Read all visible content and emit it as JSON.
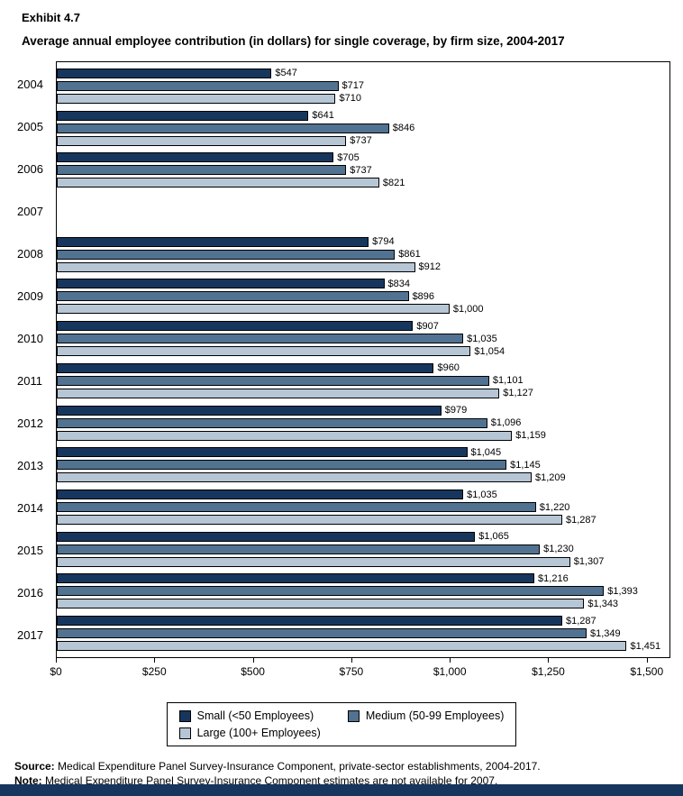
{
  "header": {
    "exhibit_label": "Exhibit 4.7",
    "title": "Average annual employee contribution (in dollars) for single coverage, by firm size, 2004-2017"
  },
  "chart_data": {
    "type": "bar",
    "orientation": "horizontal",
    "title": "Average annual employee contribution (in dollars) for single coverage, by firm size, 2004-2017",
    "xlabel": "",
    "ylabel": "",
    "xlim": [
      0,
      1560
    ],
    "grid": false,
    "legend_position": "bottom",
    "categories": [
      "2004",
      "2005",
      "2006",
      "2007",
      "2008",
      "2009",
      "2010",
      "2011",
      "2012",
      "2013",
      "2014",
      "2015",
      "2016",
      "2017"
    ],
    "series": [
      {
        "key": "small",
        "name": "Small (<50 Employees)",
        "color": "#17365d",
        "values": [
          547,
          641,
          705,
          null,
          794,
          834,
          907,
          960,
          979,
          1045,
          1035,
          1065,
          1216,
          1287
        ],
        "labels": [
          "$547",
          "$641",
          "$705",
          null,
          "$794",
          "$834",
          "$907",
          "$960",
          "$979",
          "$1,045",
          "$1,035",
          "$1,065",
          "$1,216",
          "$1,287"
        ]
      },
      {
        "key": "medium",
        "name": "Medium (50-99 Employees)",
        "color": "#527291",
        "values": [
          717,
          846,
          737,
          null,
          861,
          896,
          1035,
          1101,
          1096,
          1145,
          1220,
          1230,
          1393,
          1349
        ],
        "labels": [
          "$717",
          "$846",
          "$737",
          null,
          "$861",
          "$896",
          "$1,035",
          "$1,101",
          "$1,096",
          "$1,145",
          "$1,220",
          "$1,230",
          "$1,393",
          "$1,349"
        ]
      },
      {
        "key": "large",
        "name": "Large (100+ Employees)",
        "color": "#b6c6d5",
        "values": [
          710,
          737,
          821,
          null,
          912,
          1000,
          1054,
          1127,
          1159,
          1209,
          1287,
          1307,
          1343,
          1451
        ],
        "labels": [
          "$710",
          "$737",
          "$821",
          null,
          "$912",
          "$1,000",
          "$1,054",
          "$1,127",
          "$1,159",
          "$1,209",
          "$1,287",
          "$1,307",
          "$1,343",
          "$1,451"
        ]
      }
    ],
    "x_ticks": [
      {
        "value": 0,
        "label": "$0"
      },
      {
        "value": 250,
        "label": "$250"
      },
      {
        "value": 500,
        "label": "$500"
      },
      {
        "value": 750,
        "label": "$750"
      },
      {
        "value": 1000,
        "label": "$1,000"
      },
      {
        "value": 1250,
        "label": "$1,250"
      },
      {
        "value": 1500,
        "label": "$1,500"
      }
    ]
  },
  "footnotes": {
    "source_label": "Source:",
    "source_text": " Medical Expenditure Panel Survey-Insurance Component, private-sector establishments, 2004-2017.",
    "note_label": "Note:",
    "note_text": " Medical Expenditure Panel Survey-Insurance Component estimates are not available for 2007."
  },
  "footer": {
    "bar_color": "#17365d"
  }
}
